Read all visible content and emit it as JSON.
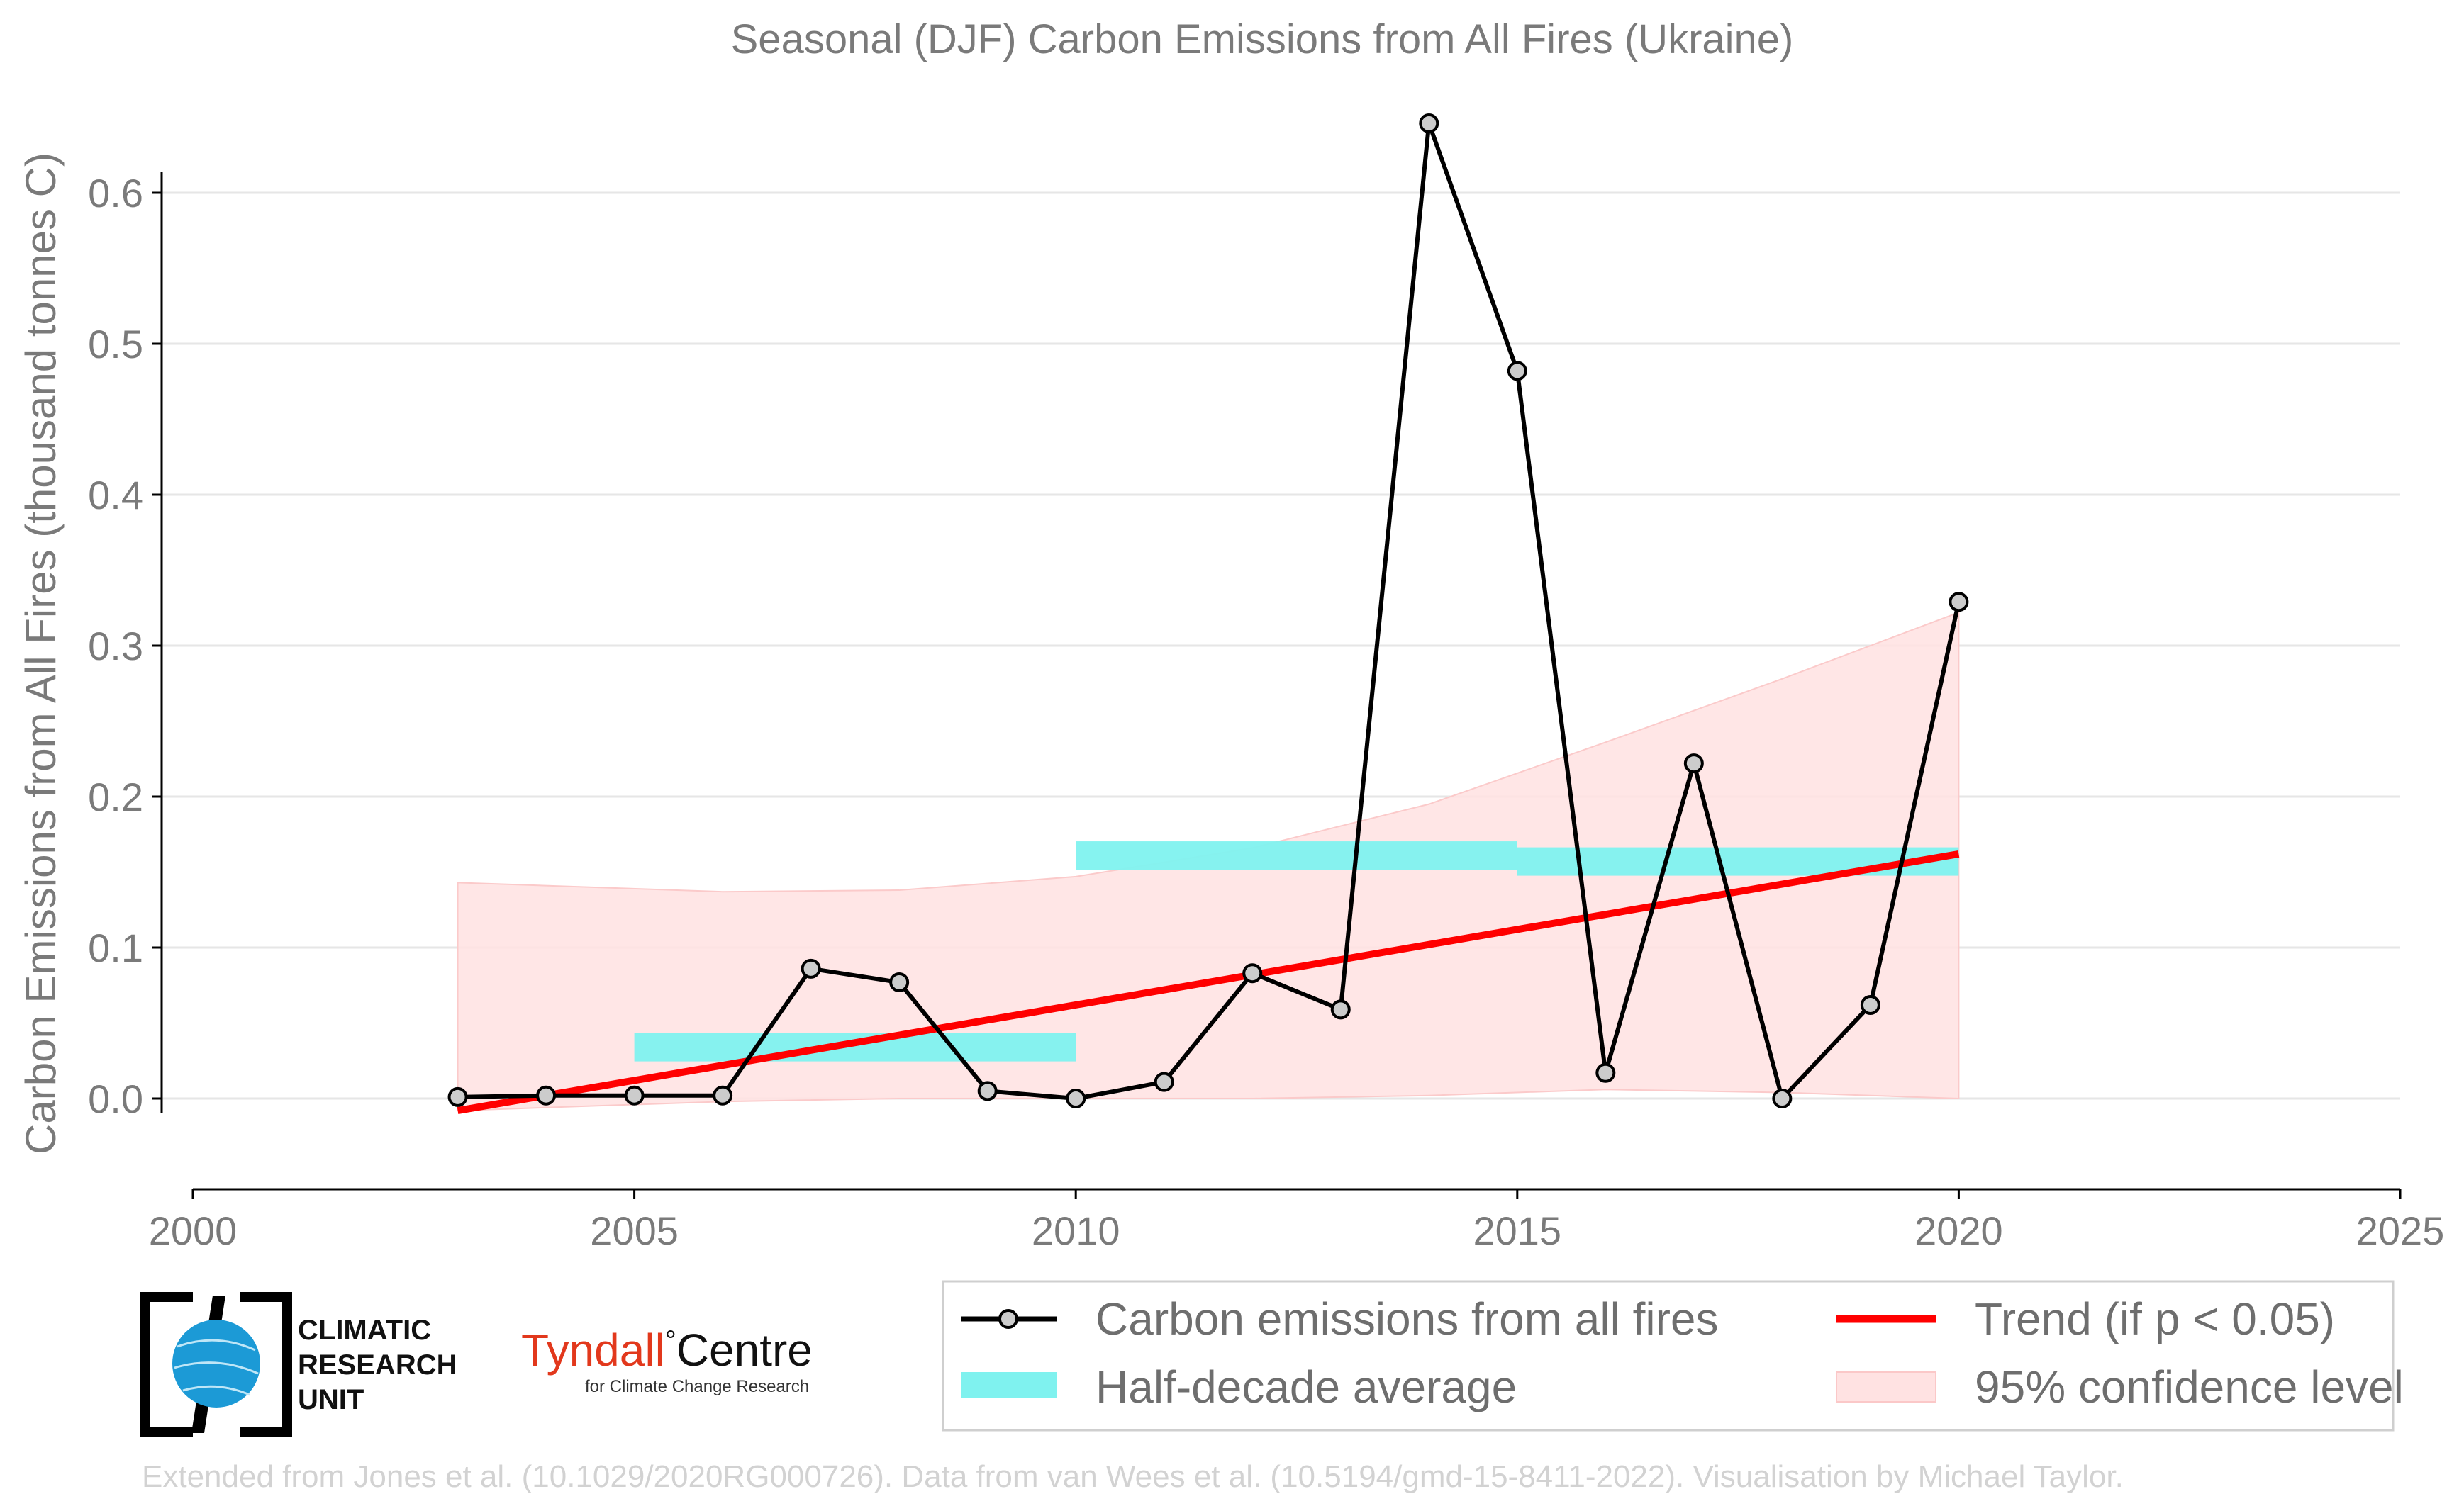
{
  "chart_data": {
    "type": "line",
    "title": "Seasonal (DJF) Carbon Emissions from All Fires (Ukraine)",
    "xlabel": "",
    "ylabel": "Carbon Emissions from All Fires (thousand tonnes C)",
    "xlim": [
      2000,
      2025
    ],
    "ylim": [
      -0.06,
      0.66
    ],
    "x_ticks": [
      2000,
      2005,
      2010,
      2015,
      2020,
      2025
    ],
    "y_ticks": [
      0.0,
      0.1,
      0.2,
      0.3,
      0.4,
      0.5,
      0.6
    ],
    "y_tick_labels": [
      "0.0",
      "0.1",
      "0.2",
      "0.3",
      "0.4",
      "0.5",
      "0.6"
    ],
    "grid": "horizontal",
    "series": [
      {
        "name": "Carbon emissions from all fires",
        "x": [
          2003,
          2004,
          2005,
          2006,
          2007,
          2008,
          2009,
          2010,
          2011,
          2012,
          2013,
          2014,
          2015,
          2016,
          2017,
          2018,
          2019,
          2020
        ],
        "values": [
          0.001,
          0.002,
          0.002,
          0.002,
          0.086,
          0.077,
          0.005,
          0.0,
          0.011,
          0.083,
          0.059,
          0.646,
          0.482,
          0.017,
          0.222,
          0.0,
          0.062,
          0.329
        ],
        "color": "#000000"
      },
      {
        "name": "Half-decade average",
        "segments": [
          {
            "x_start": 2005,
            "x_end": 2010,
            "value": 0.034
          },
          {
            "x_start": 2010,
            "x_end": 2015,
            "value": 0.161
          },
          {
            "x_start": 2015,
            "x_end": 2020,
            "value": 0.157
          }
        ],
        "color": "#7ff2ef"
      },
      {
        "name": "Trend (if p < 0.05)",
        "x": [
          2003,
          2020
        ],
        "values": [
          -0.008,
          0.162
        ],
        "color": "#ff0000"
      },
      {
        "name": "95% confidence level",
        "x": [
          2003,
          2006,
          2008,
          2010,
          2012,
          2014,
          2016,
          2018,
          2020
        ],
        "upper": [
          0.143,
          0.137,
          0.138,
          0.147,
          0.166,
          0.195,
          0.236,
          0.278,
          0.322
        ],
        "lower": [
          -0.008,
          -0.002,
          0.0,
          0.0,
          0.0,
          0.002,
          0.006,
          0.004,
          0.0
        ],
        "color": "#ffe2e2"
      }
    ],
    "legend": {
      "placement": "bottom-right",
      "items": [
        {
          "label": "Carbon emissions from all fires",
          "symbol": "line-marker"
        },
        {
          "label": "Trend (if p < 0.05)",
          "symbol": "red-line"
        },
        {
          "label": "Half-decade average",
          "symbol": "cyan-patch"
        },
        {
          "label": "95% confidence level",
          "symbol": "pink-patch"
        }
      ]
    }
  },
  "logos": {
    "cru": "CLIMATIC RESEARCH UNIT",
    "cru_line1": "CLIMATIC",
    "cru_line2": "RESEARCH",
    "cru_line3": "UNIT",
    "tyndall_name": "Tyndall",
    "tyndall_degree": "°",
    "tyndall_centre": "Centre",
    "tyndall_sub": "for Climate Change Research"
  },
  "credit": "Extended from Jones et al. (10.1029/2020RG000726). Data from van Wees et al. (10.5194/gmd-15-8411-2022). Visualisation by Michael Taylor."
}
